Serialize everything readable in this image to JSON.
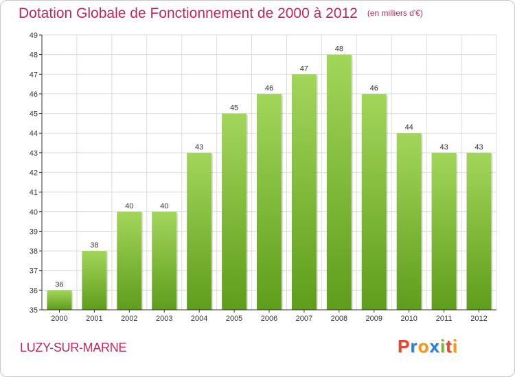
{
  "header": {
    "title": "Dotation Globale de Fonctionnement de 2000 à 2012",
    "unit": "(en milliers d'€)"
  },
  "footer": {
    "commune": "LUZY-SUR-MARNE",
    "logo_letters": [
      "P",
      "r",
      "o",
      "x",
      "i",
      "t",
      "i"
    ]
  },
  "colors": {
    "title": "#c2275c",
    "bar_light": "#a2d65a",
    "bar_dark": "#5f9d1c",
    "axis": "#333333",
    "grid": "#dddddd",
    "logo": [
      "#e8452c",
      "#2b7fd1",
      "#f39c12",
      "#2b7fd1",
      "#7cb82f",
      "#e8452c",
      "#f39c12"
    ]
  },
  "chart_data": {
    "type": "bar",
    "categories": [
      "2000",
      "2001",
      "2002",
      "2003",
      "2004",
      "2005",
      "2006",
      "2007",
      "2008",
      "2009",
      "2010",
      "2011",
      "2012"
    ],
    "values": [
      36,
      38,
      40,
      40,
      43,
      45,
      46,
      47,
      48,
      46,
      44,
      43,
      43
    ],
    "data_labels": [
      "36",
      "38",
      "40",
      "40",
      "43",
      "45",
      "46",
      "47",
      "48",
      "46",
      "44",
      "43",
      "43"
    ],
    "title": "Dotation Globale de Fonctionnement de 2000 à 2012",
    "xlabel": "",
    "ylabel": "",
    "ylim": [
      35,
      49
    ],
    "yticks": [
      35,
      36,
      37,
      38,
      39,
      40,
      41,
      42,
      43,
      44,
      45,
      46,
      47,
      48,
      49
    ],
    "grid": true,
    "legend": "none"
  }
}
